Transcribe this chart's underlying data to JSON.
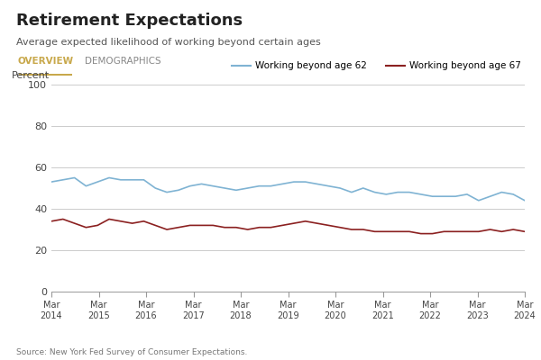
{
  "title": "Retirement Expectations",
  "subtitle": "Average expected likelihood of working beyond certain ages",
  "tab1": "OVERVIEW",
  "tab2": "DEMOGRAPHICS",
  "ylabel": "Percent",
  "source": "Source: New York Fed Survey of Consumer Expectations.",
  "ylim": [
    0,
    100
  ],
  "yticks": [
    0,
    20,
    40,
    60,
    80,
    100
  ],
  "x_labels": [
    "Mar\n2014",
    "Mar\n2015",
    "Mar\n2016",
    "Mar\n2017",
    "Mar\n2018",
    "Mar\n2019",
    "Mar\n2020",
    "Mar\n2021",
    "Mar\n2022",
    "Mar\n2023",
    "Mar\n2024"
  ],
  "x_positions": [
    0,
    12,
    24,
    36,
    48,
    60,
    72,
    84,
    96,
    108,
    120
  ],
  "line62_color": "#7fb3d3",
  "line67_color": "#8b2020",
  "legend62": "Working beyond age 62",
  "legend67": "Working beyond age 67",
  "bg_color": "#ffffff",
  "panel_bg": "#f0f0f0",
  "plot_background": "#ffffff",
  "grid_color": "#cccccc",
  "tab_active_color": "#c8a84b",
  "tab_inactive_color": "#888888",
  "age62": [
    53,
    54,
    55,
    51,
    53,
    55,
    54,
    54,
    54,
    50,
    48,
    49,
    51,
    52,
    51,
    50,
    49,
    50,
    51,
    51,
    52,
    53,
    53,
    52,
    51,
    50,
    48,
    50,
    48,
    47,
    48,
    48,
    47,
    46,
    46,
    46,
    47,
    44,
    46,
    48,
    47,
    44
  ],
  "age67": [
    34,
    35,
    33,
    31,
    32,
    35,
    34,
    33,
    34,
    32,
    30,
    31,
    32,
    32,
    32,
    31,
    31,
    30,
    31,
    31,
    32,
    33,
    34,
    33,
    32,
    31,
    30,
    30,
    29,
    29,
    29,
    29,
    28,
    28,
    29,
    29,
    29,
    29,
    30,
    29,
    30,
    29
  ]
}
